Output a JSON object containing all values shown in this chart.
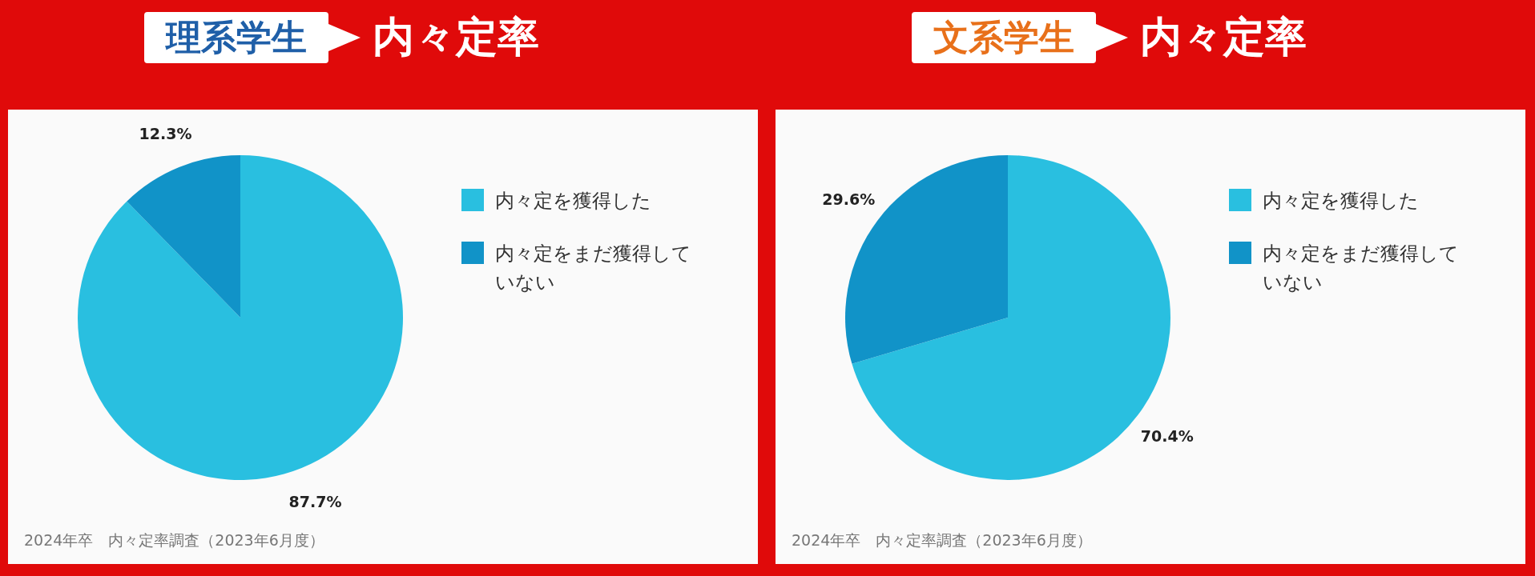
{
  "chart_data": [
    {
      "type": "pie",
      "title": "理系学生",
      "subtitle": "内々定率",
      "categories": [
        "内々定を獲得した",
        "内々定をまだ獲得していない"
      ],
      "values": [
        87.7,
        12.3
      ],
      "colors": [
        "#29bfe0",
        "#1193c8"
      ],
      "value_labels": [
        "87.7%",
        "12.3%"
      ],
      "legend": "right",
      "annotations": [
        "2024年卒　内々定率調査（2023年6月度）"
      ]
    },
    {
      "type": "pie",
      "title": "文系学生",
      "subtitle": "内々定率",
      "categories": [
        "内々定を獲得した",
        "内々定をまだ獲得していない"
      ],
      "values": [
        70.4,
        29.6
      ],
      "colors": [
        "#29bfe0",
        "#1193c8"
      ],
      "value_labels": [
        "70.4%",
        "29.6%"
      ],
      "legend": "right",
      "annotations": [
        "2024年卒　内々定率調査（2023年6月度）"
      ]
    }
  ]
}
